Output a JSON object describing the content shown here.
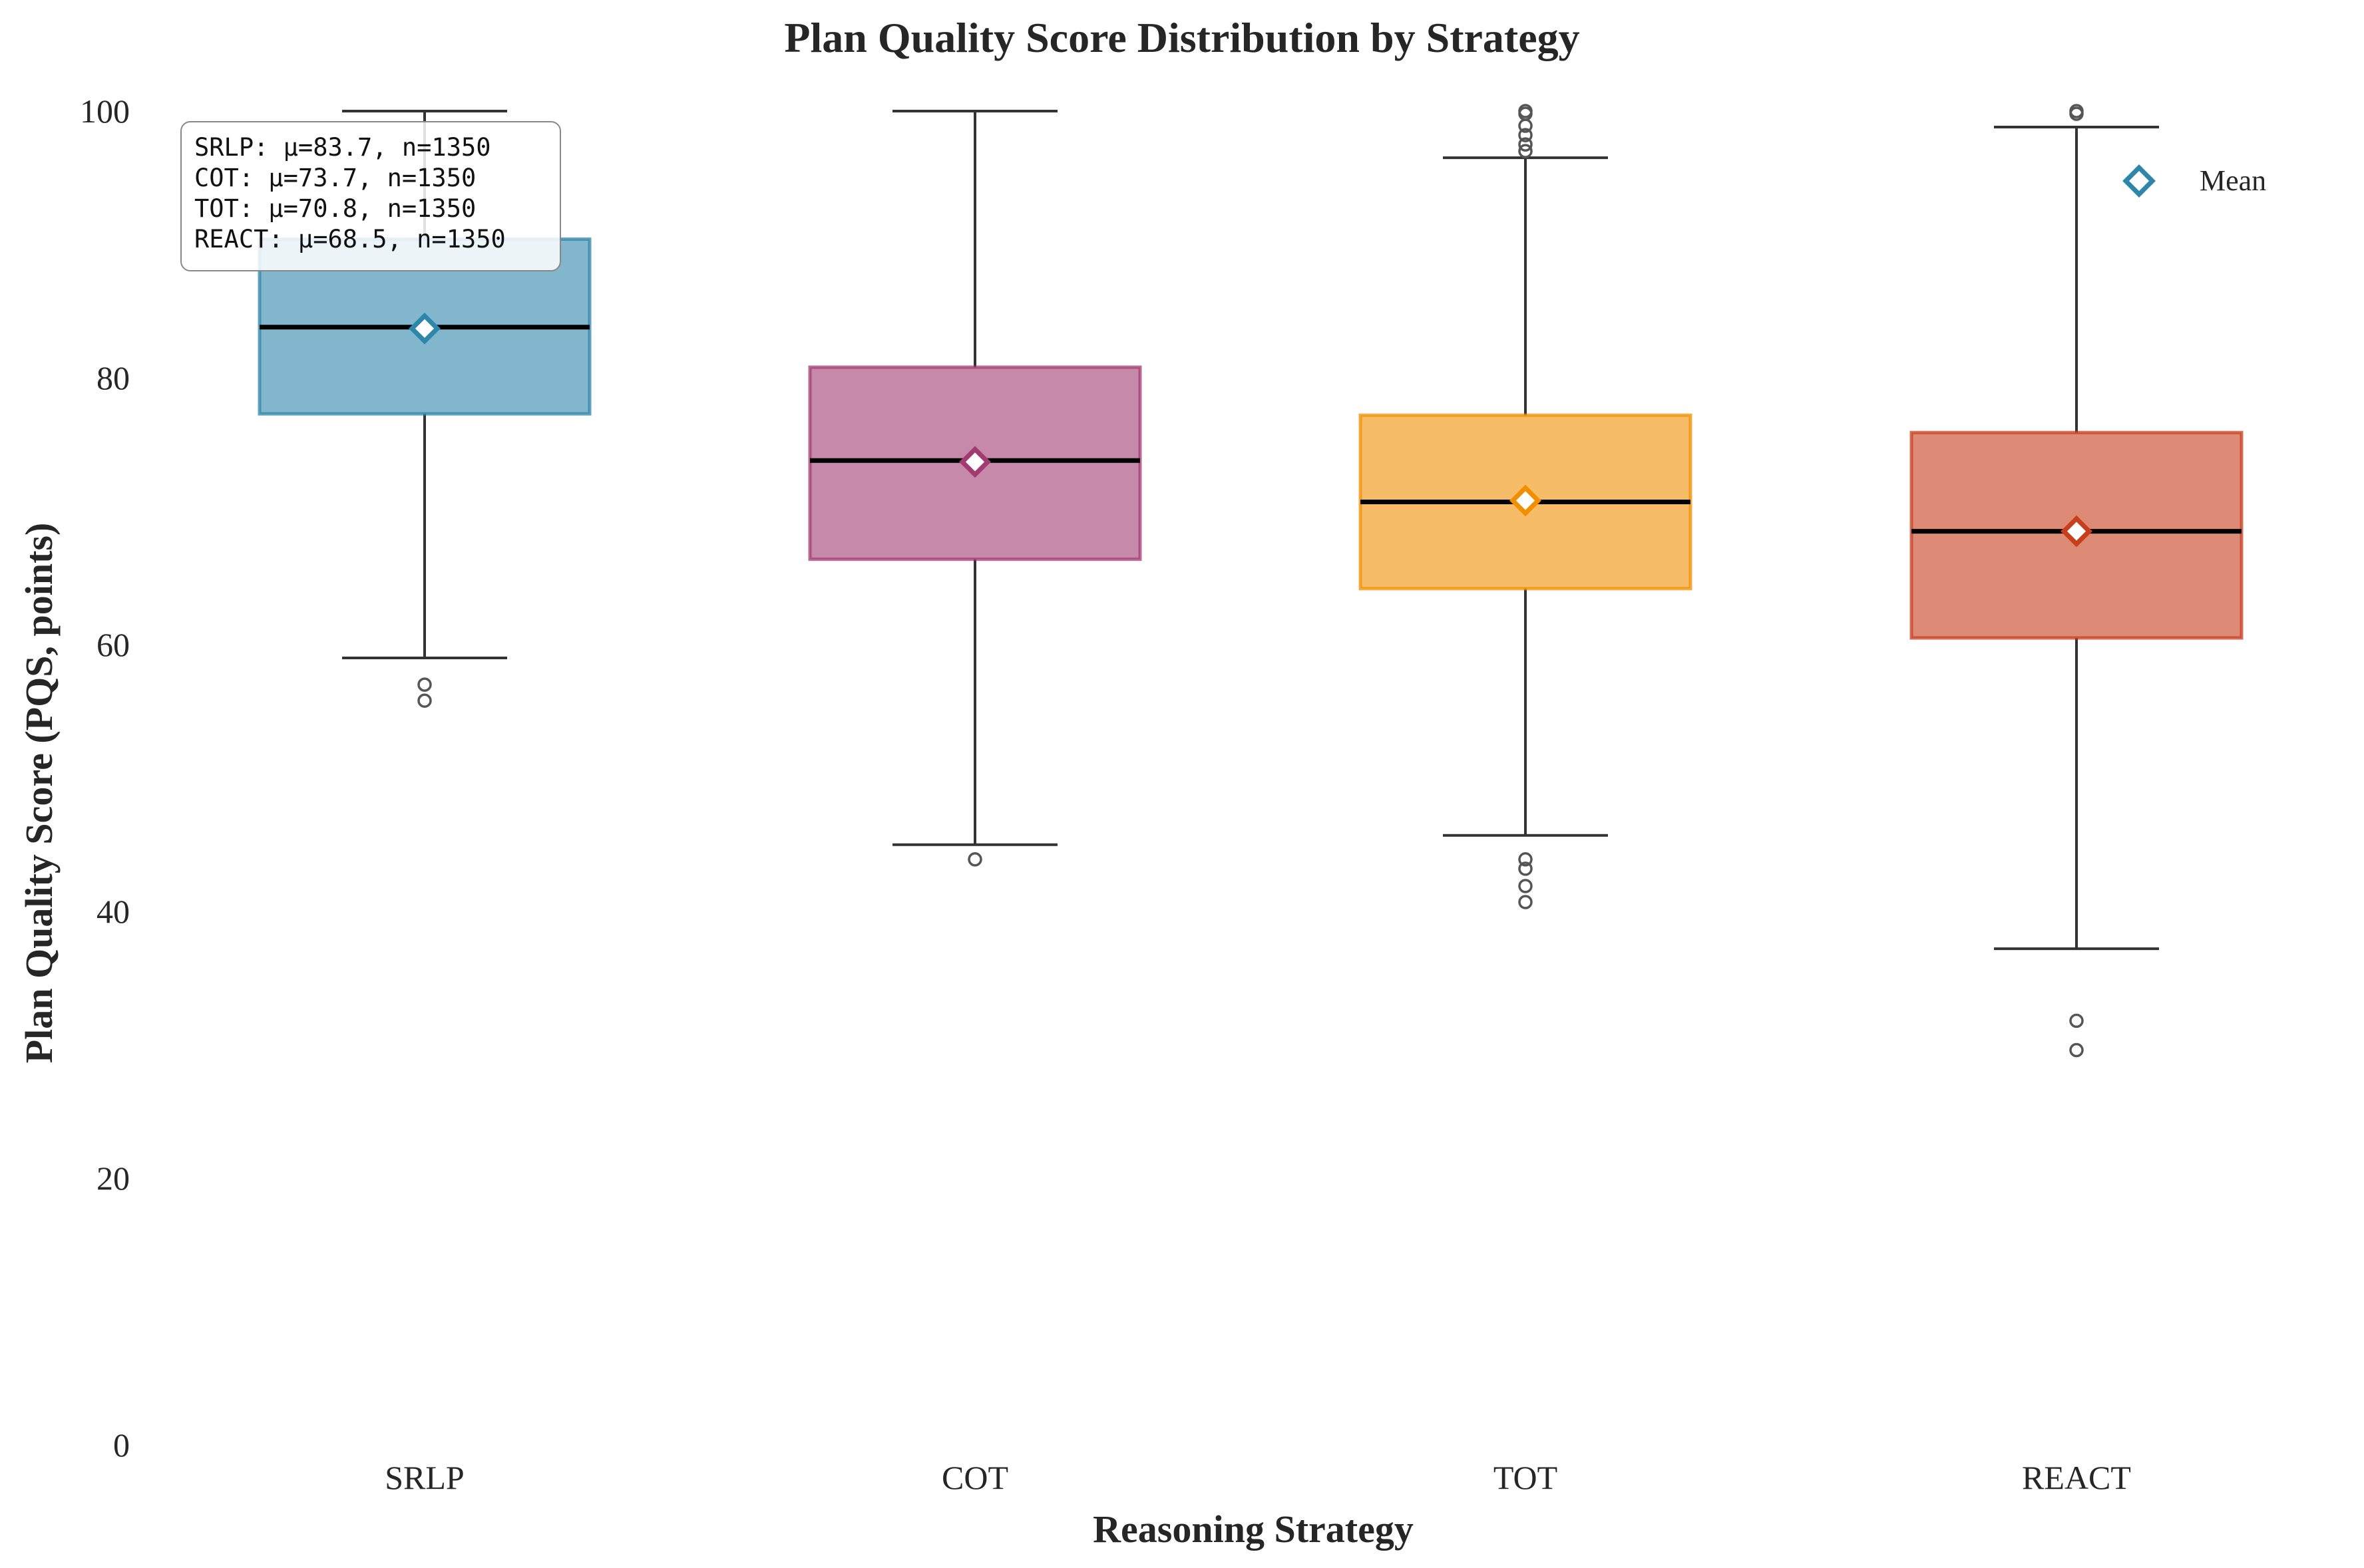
{
  "chart_data": {
    "type": "box",
    "title": "Plan Quality Score Distribution by Strategy",
    "xlabel": "Reasoning Strategy",
    "ylabel": "Plan Quality Score (PQS, points)",
    "ylim": [
      0,
      100
    ],
    "yticks": [
      0,
      20,
      40,
      60,
      80,
      100
    ],
    "grid": false,
    "categories": [
      "SRLP",
      "COT",
      "TOT",
      "REACT"
    ],
    "series": [
      {
        "name": "SRLP",
        "color": "#2E86AB",
        "whisker_low": 59.0,
        "q1": 77.3,
        "median": 83.8,
        "q3": 90.4,
        "whisker_high": 100.0,
        "mean": 83.7,
        "outliers": [
          57.0,
          55.8
        ]
      },
      {
        "name": "COT",
        "color": "#A23B72",
        "whisker_low": 45.0,
        "q1": 66.4,
        "median": 73.8,
        "q3": 80.8,
        "whisker_high": 100.0,
        "mean": 73.7,
        "outliers": [
          43.9
        ]
      },
      {
        "name": "TOT",
        "color": "#F18F01",
        "whisker_low": 45.7,
        "q1": 64.2,
        "median": 70.7,
        "q3": 77.2,
        "whisker_high": 96.5,
        "mean": 70.8,
        "outliers": [
          97.0,
          97.5,
          98.2,
          98.9,
          99.8,
          100.0,
          43.9,
          43.2,
          41.9,
          40.7
        ]
      },
      {
        "name": "REACT",
        "color": "#C73E1D",
        "whisker_low": 37.2,
        "q1": 60.5,
        "median": 68.5,
        "q3": 75.9,
        "whisker_high": 98.8,
        "mean": 68.5,
        "outliers": [
          99.8,
          100.0,
          31.8,
          29.6
        ]
      }
    ],
    "legend": {
      "position": "upper right",
      "entries": [
        {
          "label": "Mean",
          "marker": "diamond",
          "color": "#2E86AB"
        }
      ]
    },
    "stats_box": {
      "position": "upper left",
      "lines": [
        "SRLP: μ=83.7, n=1350",
        "COT: μ=73.7, n=1350",
        "TOT: μ=70.8, n=1350",
        "REACT: μ=68.5, n=1350"
      ]
    }
  }
}
